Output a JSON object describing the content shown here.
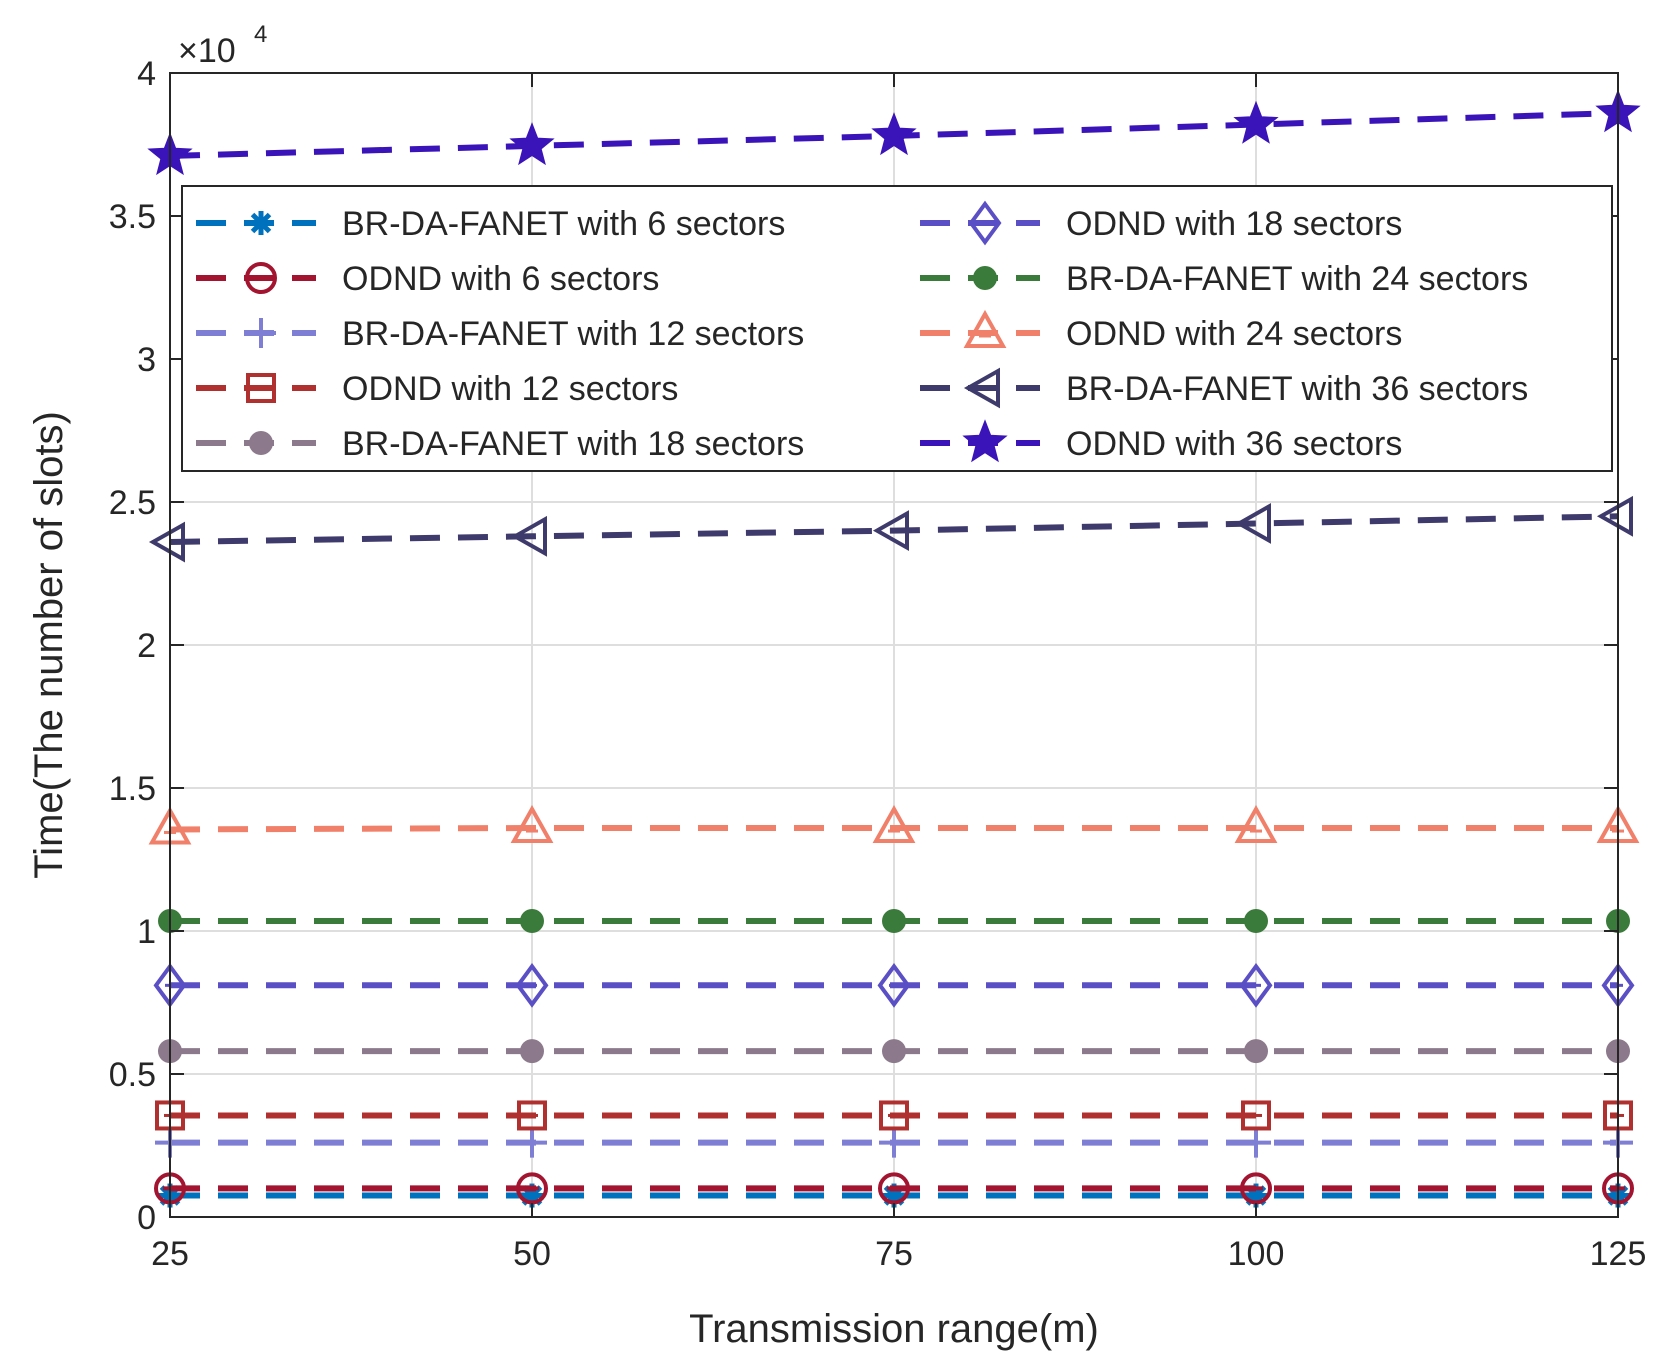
{
  "chart_data": {
    "type": "line",
    "title": "",
    "xlabel": "Transmission range(m)",
    "ylabel": "Time(The number of slots)",
    "y_multiplier": "×10",
    "y_multiplier_exp": "4",
    "x": [
      25,
      50,
      75,
      100,
      125
    ],
    "x_tick_labels": [
      "25",
      "50",
      "75",
      "100",
      "125"
    ],
    "y_tick_values": [
      0,
      0.5,
      1,
      1.5,
      2,
      2.5,
      3,
      3.5,
      4
    ],
    "y_tick_labels": [
      "0",
      "0.5",
      "1",
      "1.5",
      "2",
      "2.5",
      "3",
      "3.5",
      "4"
    ],
    "xlim": [
      25,
      125
    ],
    "ylim": [
      0,
      4
    ],
    "grid": true,
    "legend_position": "top",
    "series": [
      {
        "name": "BR-DA-FANET with 6 sectors",
        "values": [
          0.075,
          0.075,
          0.075,
          0.075,
          0.075
        ],
        "color": "#0072BD",
        "marker": "asterisk"
      },
      {
        "name": "ODND with 6 sectors",
        "values": [
          0.1,
          0.1,
          0.1,
          0.1,
          0.1
        ],
        "color": "#A2142F",
        "marker": "circle"
      },
      {
        "name": "BR-DA-FANET with 12 sectors",
        "values": [
          0.26,
          0.26,
          0.26,
          0.26,
          0.26
        ],
        "color": "#7E7ED4",
        "marker": "plus"
      },
      {
        "name": "ODND with 12 sectors",
        "values": [
          0.355,
          0.355,
          0.355,
          0.355,
          0.355
        ],
        "color": "#B0302F",
        "marker": "square"
      },
      {
        "name": "BR-DA-FANET with 18 sectors",
        "values": [
          0.58,
          0.58,
          0.58,
          0.58,
          0.58
        ],
        "color": "#8C7A8C",
        "marker": "hexagram"
      },
      {
        "name": "ODND with 18 sectors",
        "values": [
          0.81,
          0.81,
          0.81,
          0.81,
          0.81
        ],
        "color": "#5A4FC4",
        "marker": "diamond"
      },
      {
        "name": "BR-DA-FANET with 24 sectors",
        "values": [
          1.035,
          1.035,
          1.035,
          1.035,
          1.035
        ],
        "color": "#3A7A3A",
        "marker": "dot"
      },
      {
        "name": "ODND with 24 sectors",
        "values": [
          1.355,
          1.36,
          1.36,
          1.36,
          1.36
        ],
        "color": "#F0806A",
        "marker": "triangle"
      },
      {
        "name": "BR-DA-FANET with 36 sectors",
        "values": [
          2.36,
          2.38,
          2.4,
          2.425,
          2.45
        ],
        "color": "#3E3A6B",
        "marker": "triangle-left"
      },
      {
        "name": "ODND with 36 sectors",
        "values": [
          3.71,
          3.745,
          3.78,
          3.82,
          3.86
        ],
        "color": "#3A14B8",
        "marker": "star"
      }
    ]
  }
}
